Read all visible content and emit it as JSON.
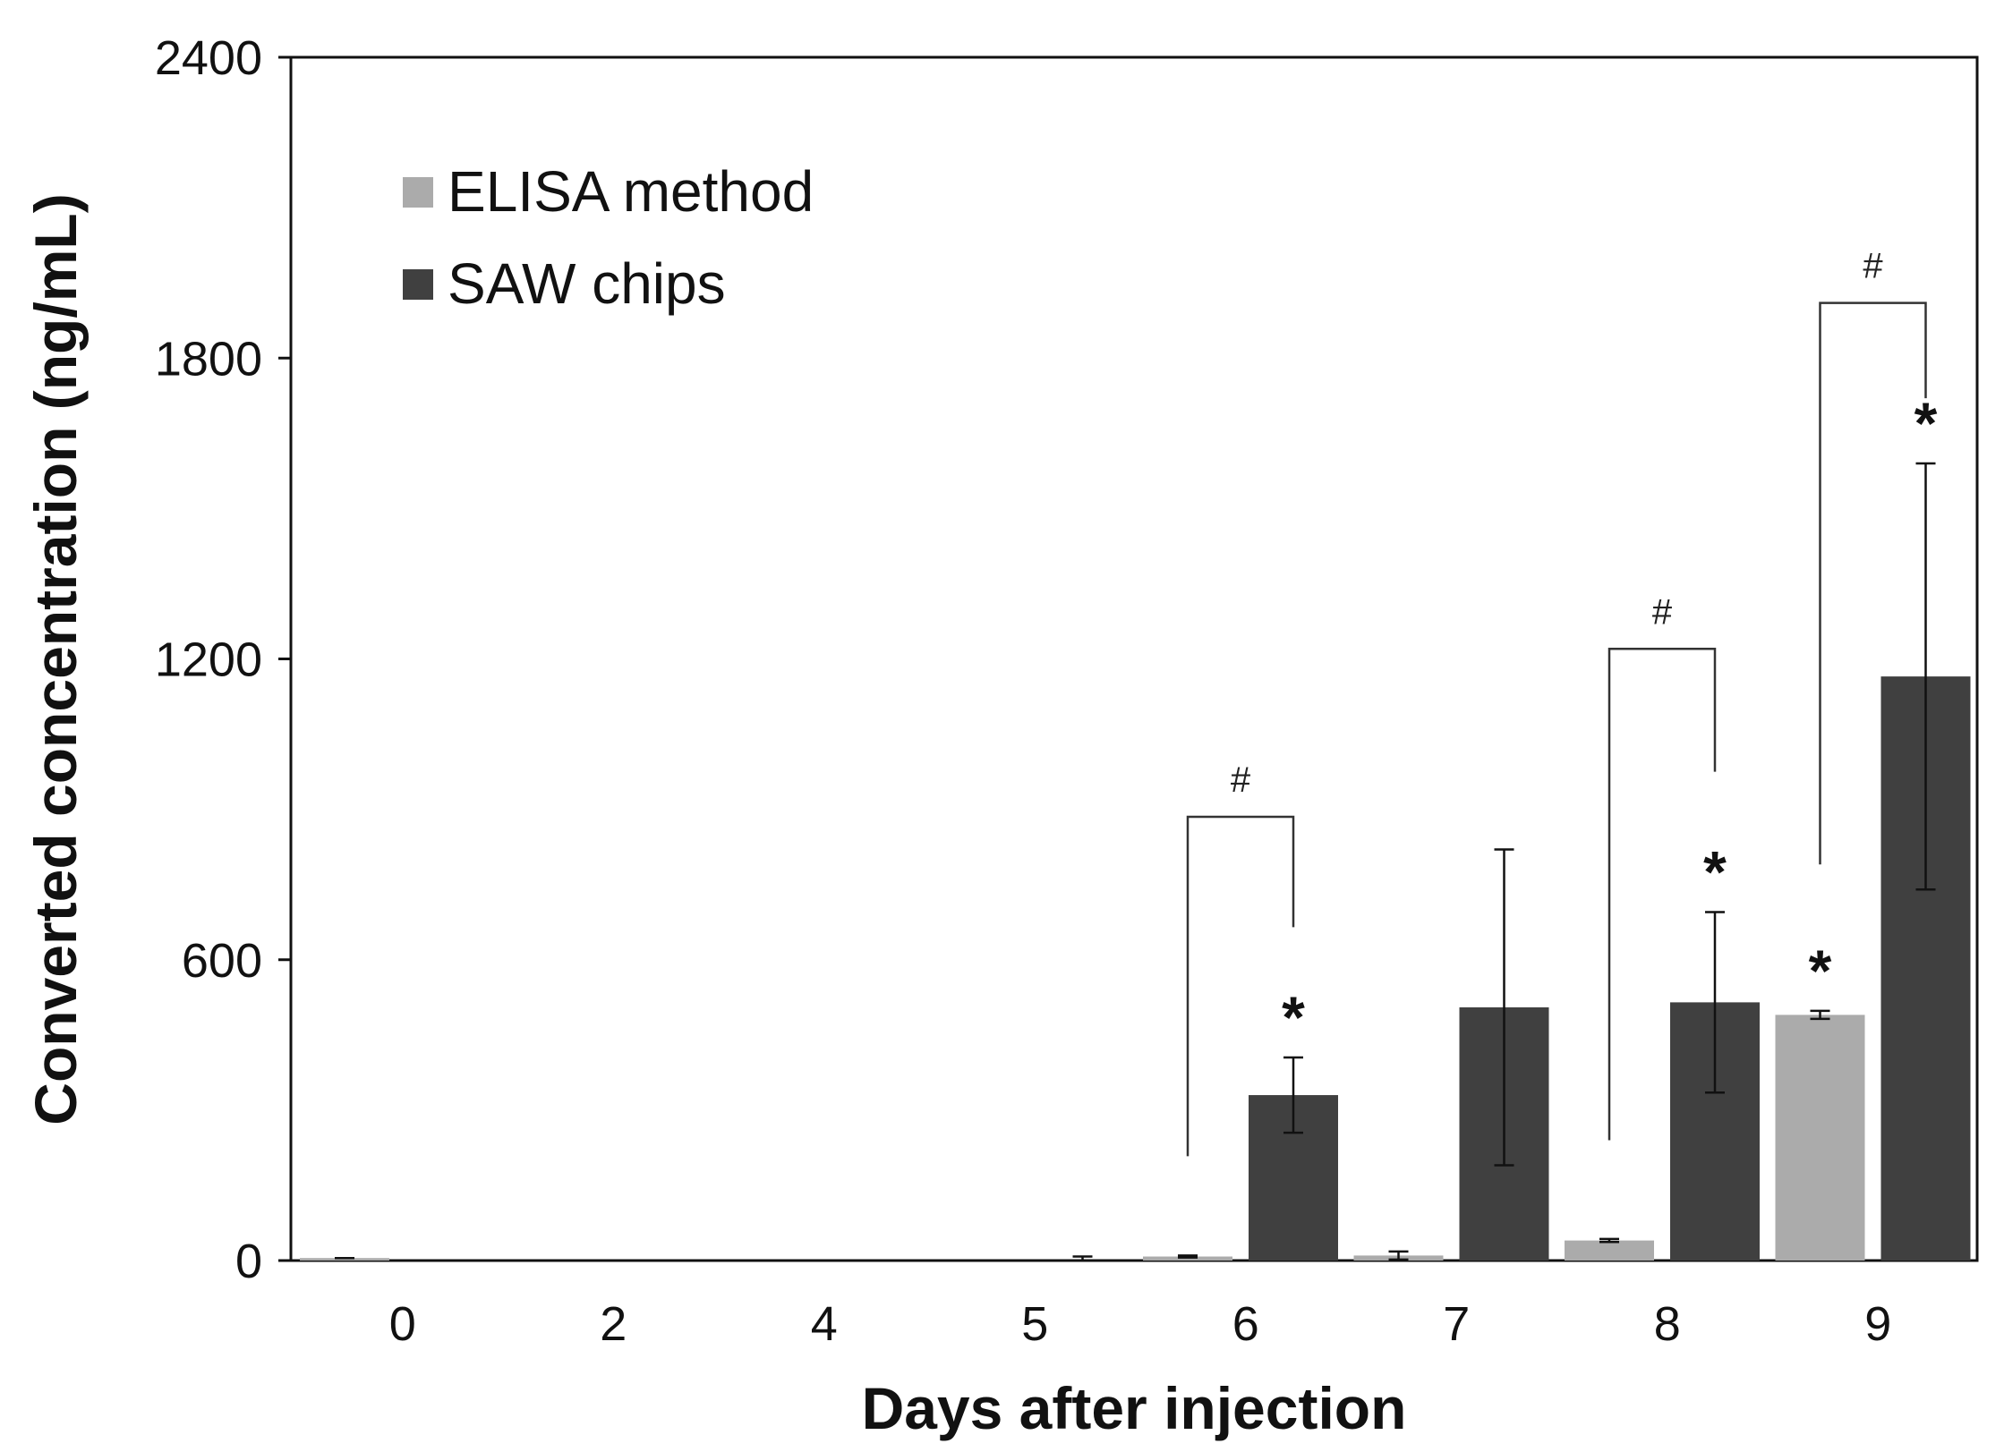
{
  "chart_data": {
    "type": "bar",
    "title": "",
    "xlabel": "Days after injection",
    "ylabel": "Converted concentration (ng/mL)",
    "ylim": [
      0,
      2400
    ],
    "yticks": [
      "0",
      "600",
      "1200",
      "1800",
      "2400"
    ],
    "categories": [
      "0",
      "2",
      "4",
      "5",
      "6",
      "7",
      "8",
      "9"
    ],
    "grid": false,
    "legend_position": "top-left",
    "series": [
      {
        "name": "ELISA method",
        "color": "#ababab",
        "values": [
          5,
          0,
          0,
          0,
          8,
          10,
          40,
          490
        ],
        "errors": [
          0,
          0,
          0,
          0,
          2,
          8,
          3,
          8
        ]
      },
      {
        "name": "SAW chips",
        "color": "#404040",
        "values": [
          0,
          0,
          0,
          0,
          330,
          505,
          515,
          1165
        ],
        "errors": [
          0,
          0,
          0,
          8,
          75,
          315,
          180,
          425
        ]
      }
    ],
    "annotations": {
      "significance_star": "*",
      "significance_hash": "#",
      "stars": [
        {
          "category": "6",
          "series": "SAW chips"
        },
        {
          "category": "8",
          "series": "SAW chips"
        },
        {
          "category": "9",
          "series": "ELISA method"
        },
        {
          "category": "9",
          "series": "SAW chips"
        }
      ],
      "brackets": [
        {
          "category": "6",
          "level": 885
        },
        {
          "category": "8",
          "level": 1220
        },
        {
          "category": "9",
          "level": 1910
        }
      ]
    }
  }
}
